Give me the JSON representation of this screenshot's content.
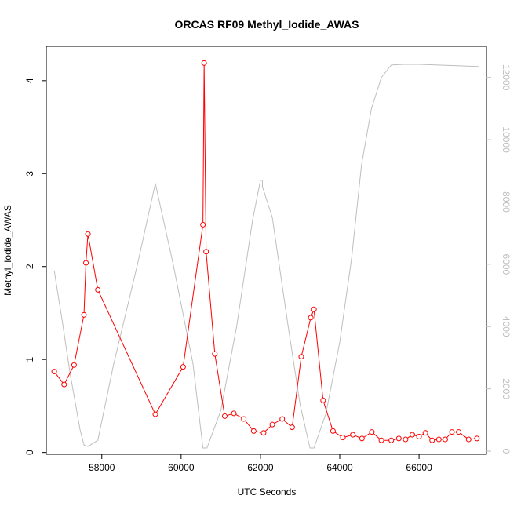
{
  "chart_data": {
    "type": "line",
    "title": "ORCAS RF09 Methyl_Iodide_AWAS",
    "xlabel": "UTC Seconds",
    "ylabel": "Methyl_Iodide_AWAS",
    "xlim": [
      56600,
      67700
    ],
    "ylim": [
      -0.02,
      4.37
    ],
    "y2lim": [
      -100,
      13000
    ],
    "x_ticks": [
      58000,
      60000,
      62000,
      64000,
      66000
    ],
    "y_ticks": [
      0,
      1,
      2,
      3,
      4
    ],
    "y2_ticks": [
      0,
      2000,
      4000,
      6000,
      8000,
      10000,
      12000
    ],
    "grid": false,
    "series": [
      {
        "axis": "left",
        "color": "#ff0000",
        "style": "line-points",
        "points": [
          [
            56800,
            0.87
          ],
          [
            57050,
            0.73
          ],
          [
            57300,
            0.94
          ],
          [
            57550,
            1.48
          ],
          [
            57600,
            2.04
          ],
          [
            57650,
            2.35
          ],
          [
            57900,
            1.75
          ],
          [
            59350,
            0.41
          ],
          [
            60050,
            0.92
          ],
          [
            60550,
            2.45
          ],
          [
            60580,
            4.19
          ],
          [
            60630,
            2.16
          ],
          [
            60850,
            1.06
          ],
          [
            61100,
            0.39
          ],
          [
            61330,
            0.42
          ],
          [
            61580,
            0.36
          ],
          [
            61830,
            0.23
          ],
          [
            62080,
            0.21
          ],
          [
            62300,
            0.3
          ],
          [
            62550,
            0.36
          ],
          [
            62800,
            0.27
          ],
          [
            63030,
            1.03
          ],
          [
            63270,
            1.45
          ],
          [
            63350,
            1.54
          ],
          [
            63580,
            0.56
          ],
          [
            63830,
            0.23
          ],
          [
            64080,
            0.16
          ],
          [
            64330,
            0.19
          ],
          [
            64560,
            0.15
          ],
          [
            64810,
            0.22
          ],
          [
            65050,
            0.13
          ],
          [
            65300,
            0.13
          ],
          [
            65490,
            0.15
          ],
          [
            65660,
            0.14
          ],
          [
            65830,
            0.19
          ],
          [
            66000,
            0.17
          ],
          [
            66160,
            0.21
          ],
          [
            66330,
            0.13
          ],
          [
            66500,
            0.14
          ],
          [
            66660,
            0.14
          ],
          [
            66830,
            0.22
          ],
          [
            67000,
            0.22
          ],
          [
            67250,
            0.14
          ],
          [
            67460,
            0.15
          ]
        ]
      },
      {
        "axis": "right",
        "color": "#bebebe",
        "style": "line",
        "points": [
          [
            56800,
            5800
          ],
          [
            57000,
            4200
          ],
          [
            57200,
            2500
          ],
          [
            57450,
            700
          ],
          [
            57550,
            200
          ],
          [
            57650,
            150
          ],
          [
            57900,
            350
          ],
          [
            58300,
            2800
          ],
          [
            58900,
            6000
          ],
          [
            59350,
            8600
          ],
          [
            59800,
            6000
          ],
          [
            60300,
            2800
          ],
          [
            60550,
            100
          ],
          [
            60650,
            100
          ],
          [
            61000,
            1300
          ],
          [
            61400,
            4000
          ],
          [
            61800,
            7400
          ],
          [
            62000,
            8700
          ],
          [
            62050,
            8700
          ],
          [
            62050,
            8500
          ],
          [
            62300,
            7500
          ],
          [
            62700,
            4000
          ],
          [
            63000,
            1500
          ],
          [
            63250,
            100
          ],
          [
            63350,
            100
          ],
          [
            63650,
            1200
          ],
          [
            64000,
            3500
          ],
          [
            64300,
            6200
          ],
          [
            64550,
            9200
          ],
          [
            64800,
            11000
          ],
          [
            65050,
            12000
          ],
          [
            65300,
            12400
          ],
          [
            65600,
            12420
          ],
          [
            66000,
            12420
          ],
          [
            67500,
            12350
          ]
        ]
      }
    ]
  }
}
